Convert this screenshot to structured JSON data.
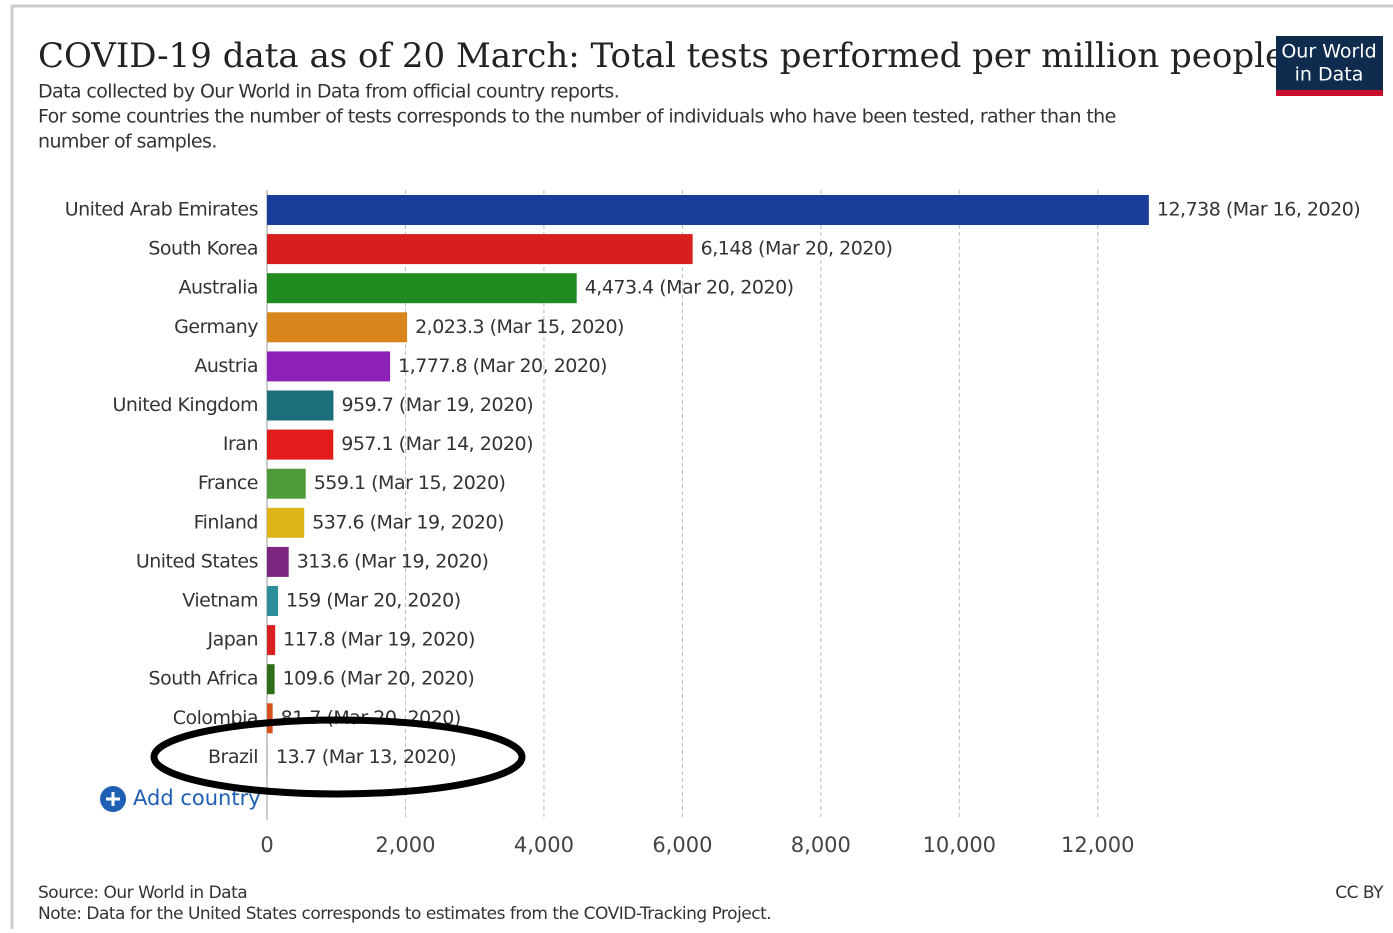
{
  "chart_data": {
    "type": "bar",
    "orientation": "horizontal",
    "title": "COVID-19 data as of 20 March: Total tests performed per million people",
    "subtitle": [
      "Data collected by Our World in Data from official country reports.",
      "For some countries the number of tests corresponds to the number of individuals who have been tested, rather than the",
      "number of samples."
    ],
    "categories": [
      "United Arab Emirates",
      "South Korea",
      "Australia",
      "Germany",
      "Austria",
      "United Kingdom",
      "Iran",
      "France",
      "Finland",
      "United States",
      "Vietnam",
      "Japan",
      "South Africa",
      "Colombia",
      "Brazil"
    ],
    "values": [
      12738,
      6148,
      4473.4,
      2023.3,
      1777.8,
      959.7,
      957.1,
      559.1,
      537.6,
      313.6,
      159,
      117.8,
      109.6,
      81.7,
      13.7
    ],
    "value_labels": [
      "12,738 (Mar 16, 2020)",
      "6,148 (Mar 20, 2020)",
      "4,473.4 (Mar 20, 2020)",
      "2,023.3 (Mar 15, 2020)",
      "1,777.8 (Mar 20, 2020)",
      "959.7 (Mar 19, 2020)",
      "957.1 (Mar 14, 2020)",
      "559.1 (Mar 15, 2020)",
      "537.6 (Mar 19, 2020)",
      "313.6 (Mar 19, 2020)",
      "159 (Mar 20, 2020)",
      "117.8 (Mar 19, 2020)",
      "109.6 (Mar 20, 2020)",
      "81.7 (Mar 20, 2020)",
      "13.7 (Mar 13, 2020)"
    ],
    "colors": [
      "#1a3c99",
      "#d71f1f",
      "#1f8a1f",
      "#d8861c",
      "#8e22b8",
      "#1c6f7a",
      "#e21b1b",
      "#4f9a3a",
      "#dfb418",
      "#7a2580",
      "#2a8f9a",
      "#d82020",
      "#2e6e18",
      "#d8501e",
      "#bbbbbb"
    ],
    "xlim": [
      0,
      13000
    ],
    "xticks": [
      0,
      {
        "value": 2000,
        "label": "2,000"
      },
      {
        "value": 4000,
        "label": "4,000"
      },
      {
        "value": 6000,
        "label": "6,000"
      },
      {
        "value": 8000,
        "label": "8,000"
      },
      {
        "value": 10000,
        "label": "10,000"
      },
      {
        "value": 12000,
        "label": "12,000"
      }
    ],
    "grid": true
  },
  "logo": [
    "Our World",
    "in Data"
  ],
  "add_button": "Add country",
  "source": "Source: Our World in Data",
  "note": "Note: Data for the United States corresponds to estimates from the COVID-Tracking Project.",
  "license": "CC BY"
}
